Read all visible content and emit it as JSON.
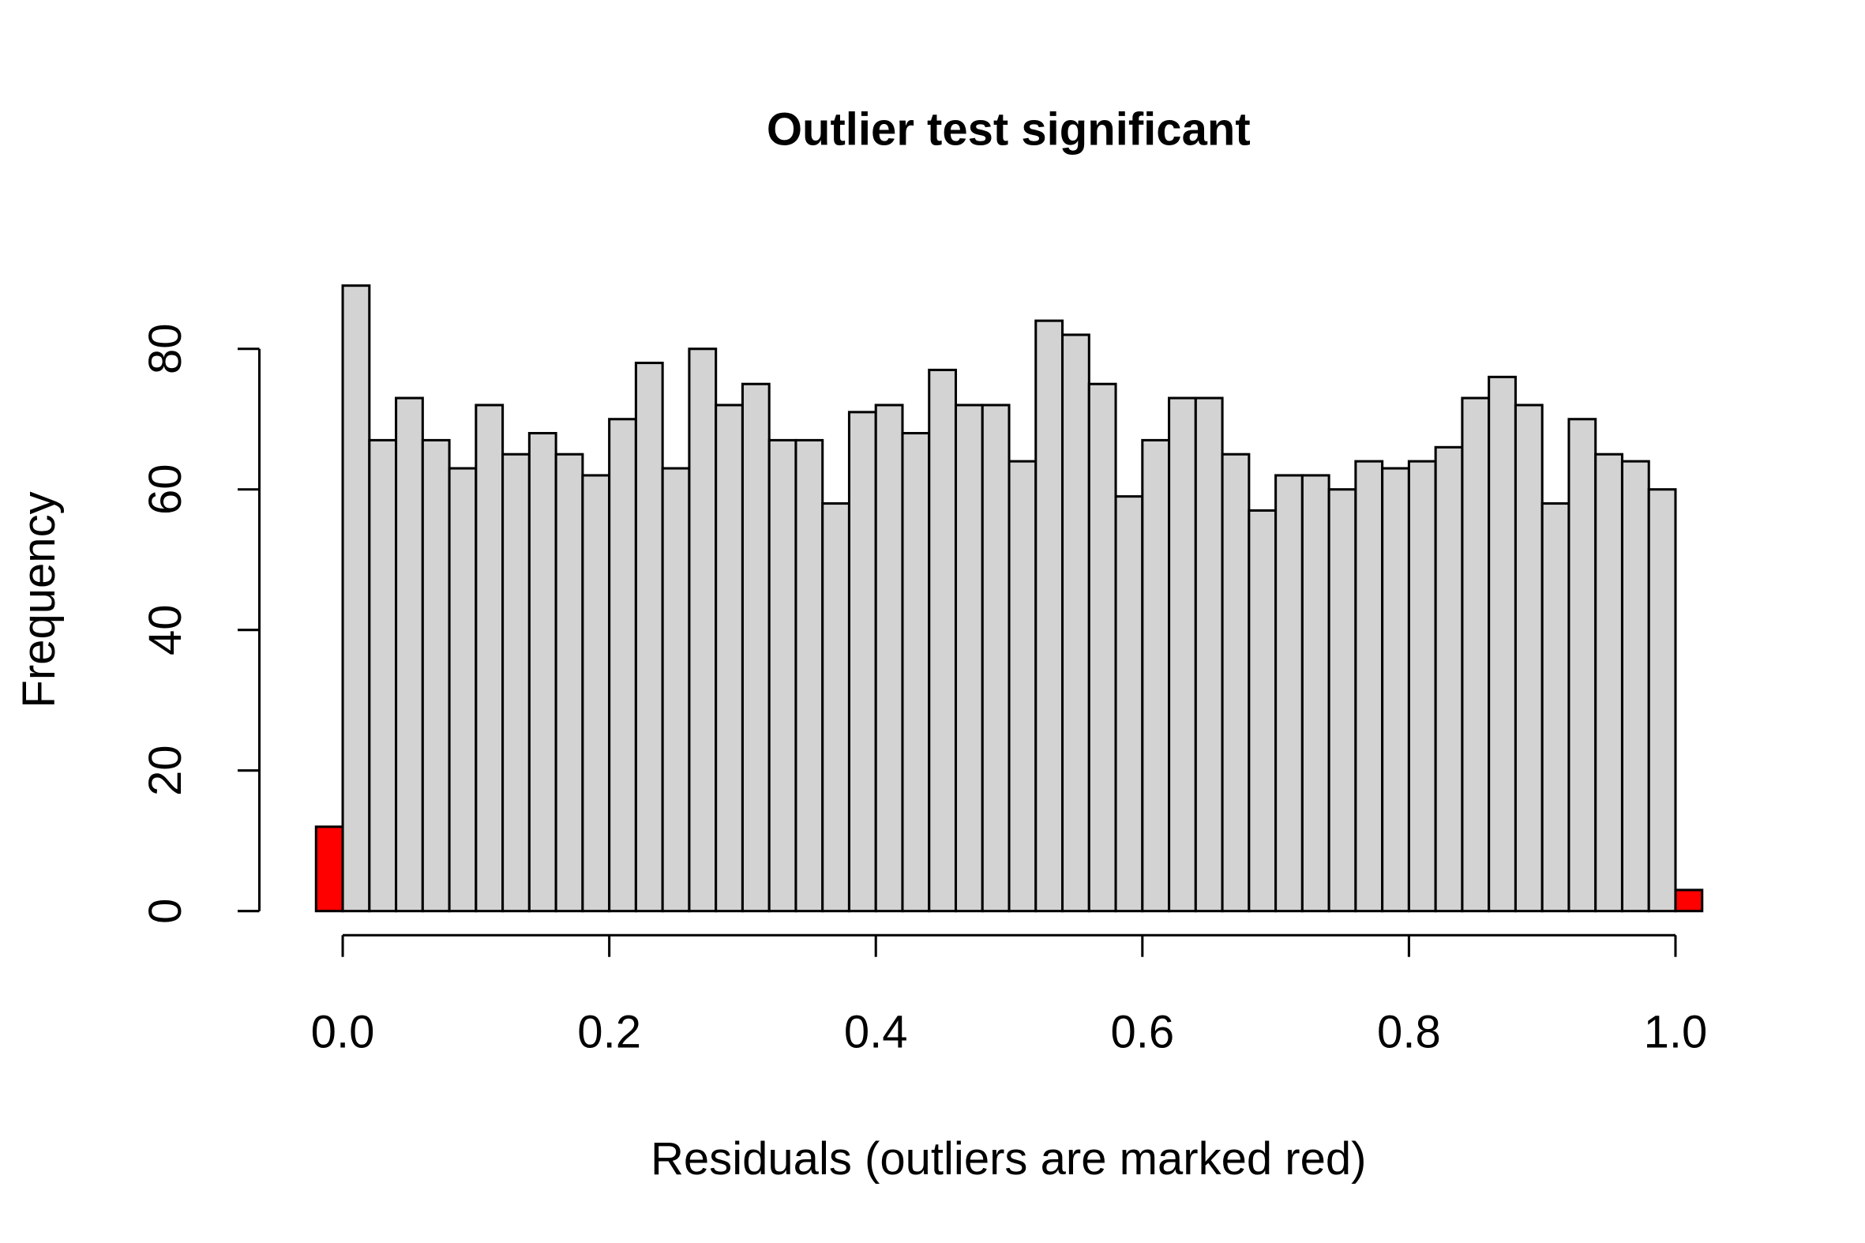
{
  "chart_data": {
    "type": "histogram",
    "title": "Outlier test significant",
    "title_color": "#ff0000",
    "xlabel": "Residuals (outliers are marked red)",
    "ylabel": "Frequency",
    "bins": [
      -0.02,
      0.0,
      0.02,
      0.04,
      0.06,
      0.08,
      0.1,
      0.12,
      0.14,
      0.16,
      0.18,
      0.2,
      0.22,
      0.24,
      0.26,
      0.28,
      0.3,
      0.32,
      0.34,
      0.36,
      0.38,
      0.4,
      0.42,
      0.44,
      0.46,
      0.48,
      0.5,
      0.52,
      0.54,
      0.56,
      0.58,
      0.6,
      0.62,
      0.64,
      0.66,
      0.68,
      0.7,
      0.72,
      0.74,
      0.76,
      0.78,
      0.8,
      0.82,
      0.84,
      0.86,
      0.88,
      0.9,
      0.92,
      0.94,
      0.96,
      0.98,
      1.0,
      1.02
    ],
    "values": [
      12,
      89,
      67,
      73,
      67,
      63,
      72,
      65,
      68,
      65,
      62,
      70,
      78,
      63,
      80,
      72,
      75,
      67,
      67,
      58,
      71,
      72,
      68,
      77,
      72,
      72,
      64,
      84,
      82,
      75,
      59,
      67,
      73,
      73,
      65,
      57,
      62,
      62,
      60,
      64,
      63,
      64,
      66,
      73,
      76,
      72,
      58,
      70,
      65,
      64,
      60,
      3
    ],
    "colors": [
      "#ff0000",
      "#d3d3d3",
      "#d3d3d3",
      "#d3d3d3",
      "#d3d3d3",
      "#d3d3d3",
      "#d3d3d3",
      "#d3d3d3",
      "#d3d3d3",
      "#d3d3d3",
      "#d3d3d3",
      "#d3d3d3",
      "#d3d3d3",
      "#d3d3d3",
      "#d3d3d3",
      "#d3d3d3",
      "#d3d3d3",
      "#d3d3d3",
      "#d3d3d3",
      "#d3d3d3",
      "#d3d3d3",
      "#d3d3d3",
      "#d3d3d3",
      "#d3d3d3",
      "#d3d3d3",
      "#d3d3d3",
      "#d3d3d3",
      "#d3d3d3",
      "#d3d3d3",
      "#d3d3d3",
      "#d3d3d3",
      "#d3d3d3",
      "#d3d3d3",
      "#d3d3d3",
      "#d3d3d3",
      "#d3d3d3",
      "#d3d3d3",
      "#d3d3d3",
      "#d3d3d3",
      "#d3d3d3",
      "#d3d3d3",
      "#d3d3d3",
      "#d3d3d3",
      "#d3d3d3",
      "#d3d3d3",
      "#d3d3d3",
      "#d3d3d3",
      "#d3d3d3",
      "#d3d3d3",
      "#d3d3d3",
      "#d3d3d3",
      "#ff0000"
    ],
    "xlim": [
      -0.02,
      1.02
    ],
    "ylim": [
      0,
      89
    ],
    "xticks": [
      {
        "value": 0,
        "label": "0.0"
      },
      {
        "value": 0.2,
        "label": "0.2"
      },
      {
        "value": 0.4,
        "label": "0.4"
      },
      {
        "value": 0.6,
        "label": "0.6"
      },
      {
        "value": 0.8,
        "label": "0.8"
      },
      {
        "value": 1,
        "label": "1.0"
      }
    ],
    "yticks": [
      0,
      20,
      40,
      60,
      80
    ]
  }
}
